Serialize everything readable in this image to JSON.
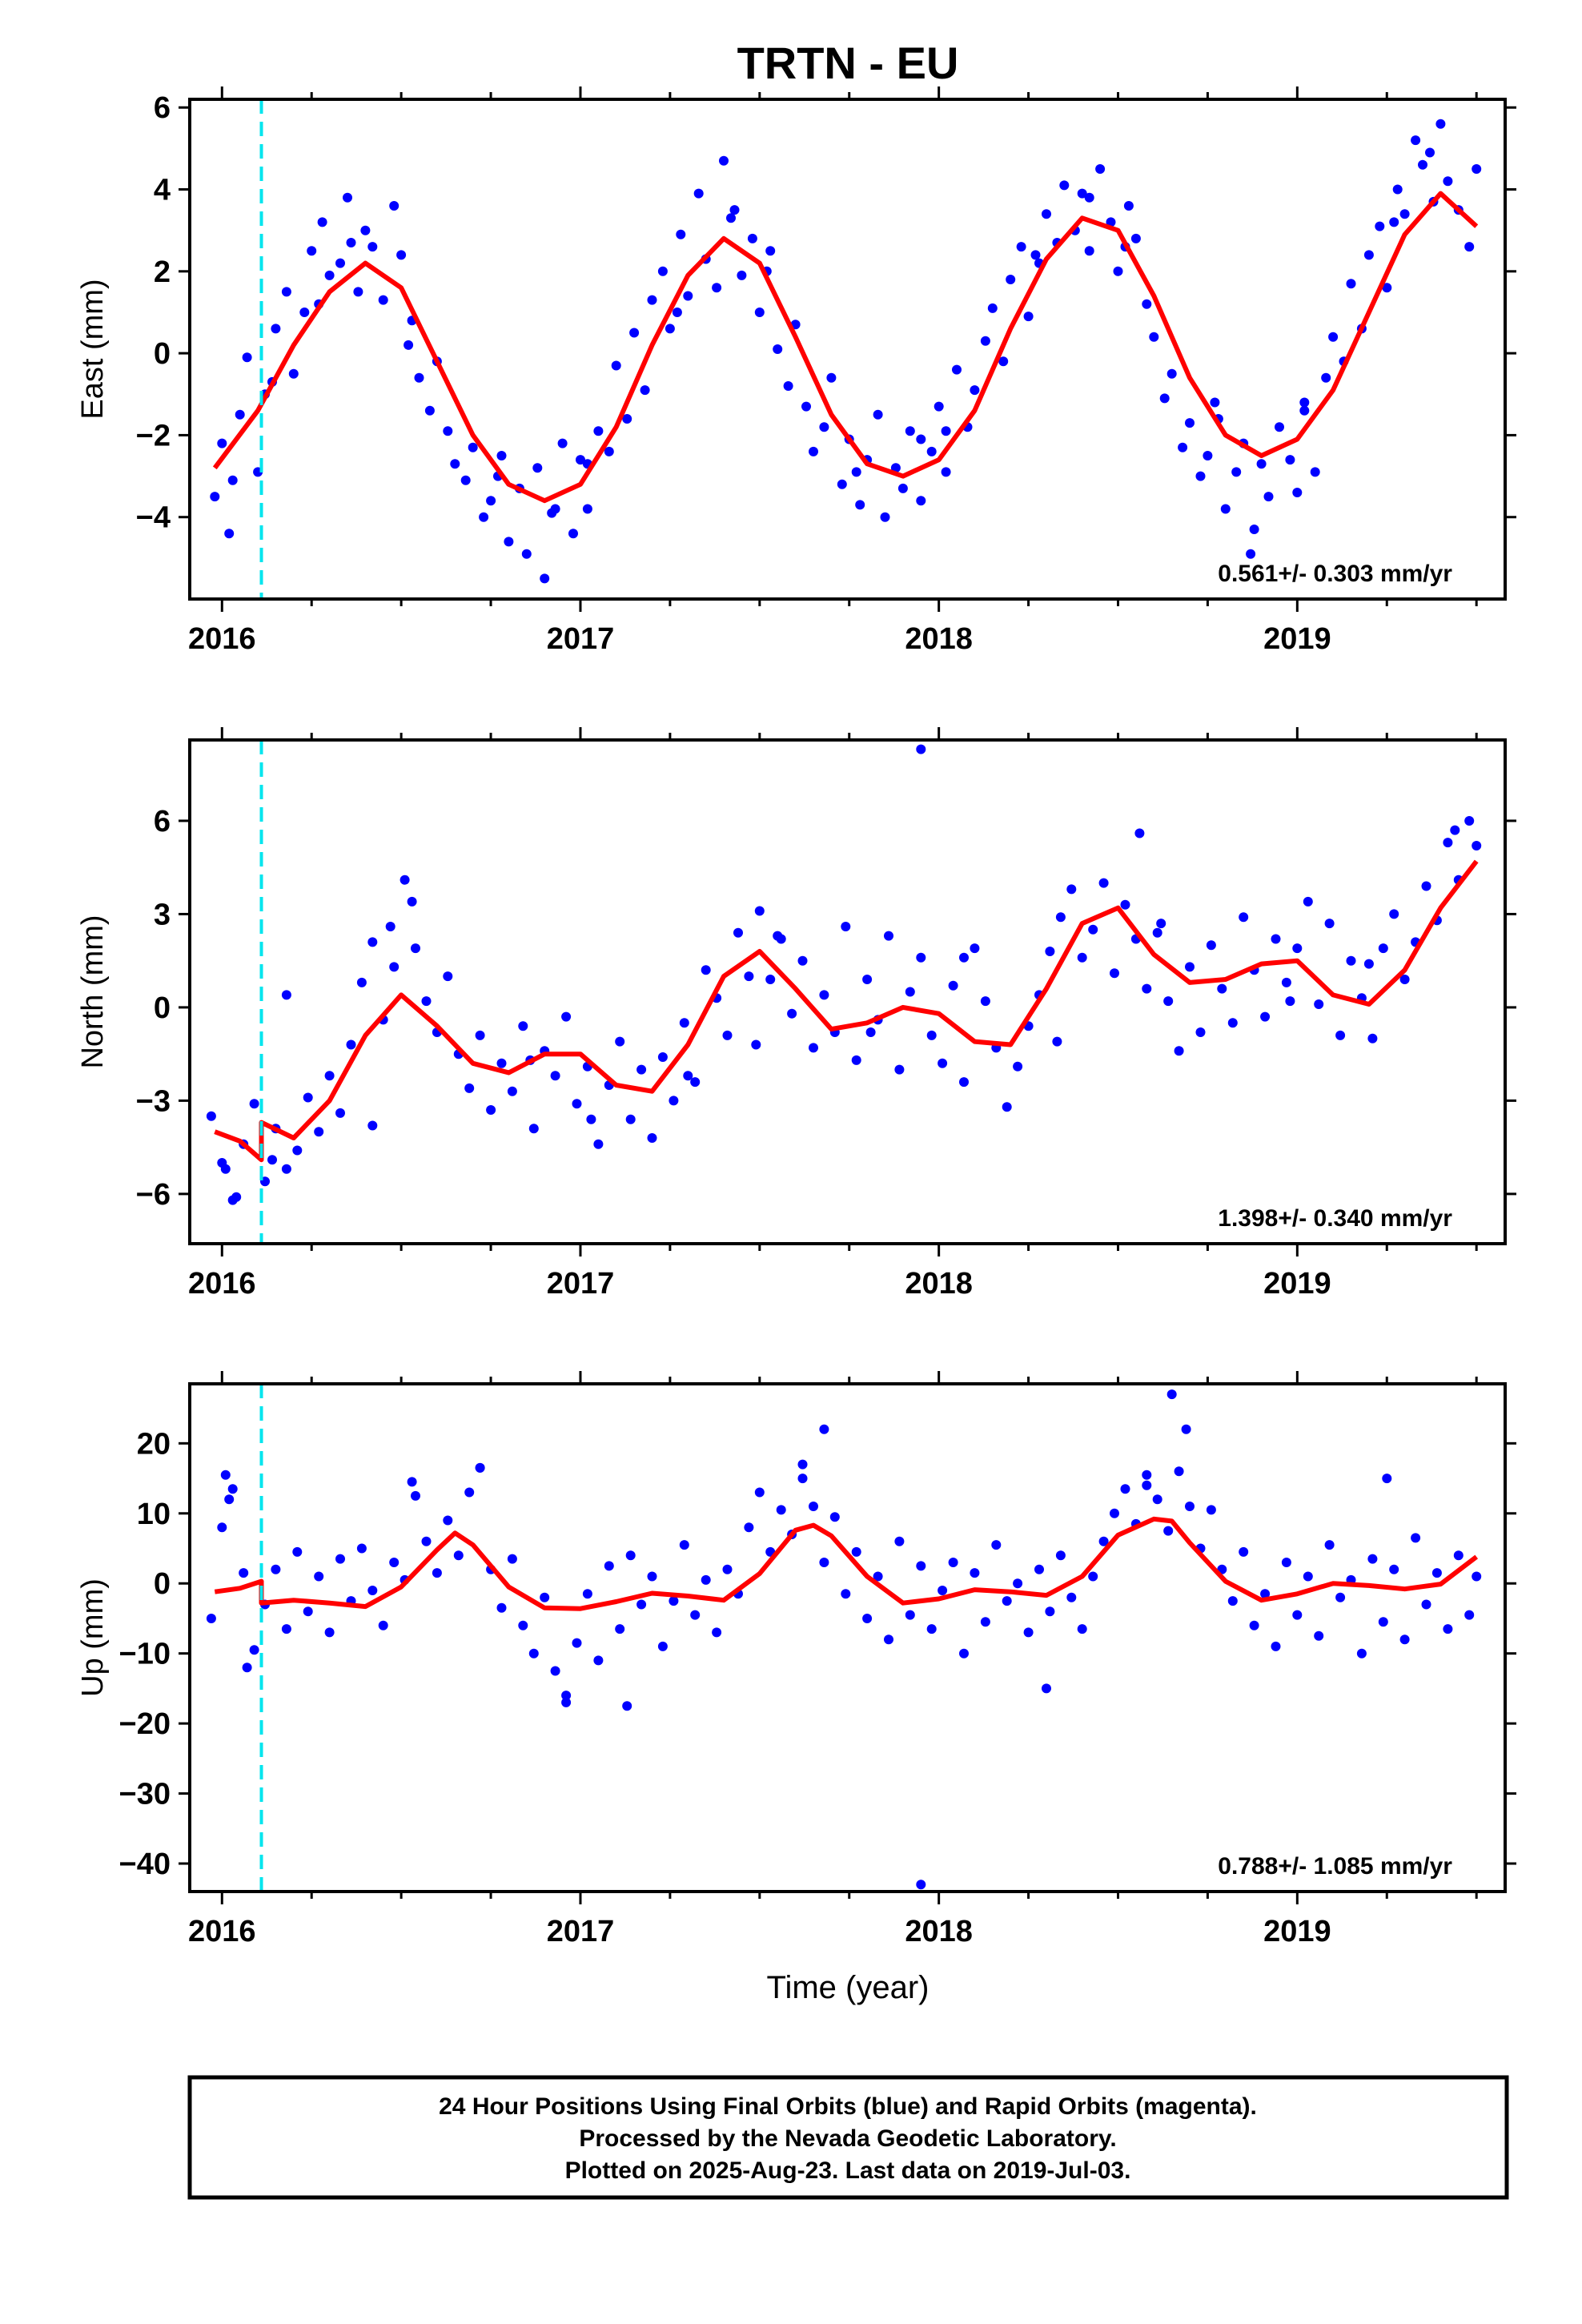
{
  "figure_title": "TRTN - EU",
  "xlabel": "Time (year)",
  "footer": {
    "line1": "24 Hour Positions Using Final Orbits (blue) and Rapid Orbits (magenta).",
    "line2": "Processed by the Nevada Geodetic Laboratory.",
    "line3": "Plotted on 2025-Aug-23. Last data on 2019-Jul-03."
  },
  "colors": {
    "points": "#0000ff",
    "model": "#ff0000",
    "event_line": "#00e5ee",
    "axes": "#000000"
  },
  "chart_data": [
    {
      "type": "scatter",
      "ylabel": "East (mm)",
      "rate_text": "0.561+/- 0.303 mm/yr",
      "xlim": [
        2015.91,
        2019.58
      ],
      "ylim": [
        -6.0,
        6.2
      ],
      "yticks": [
        -4,
        -2,
        0,
        2,
        4,
        6
      ],
      "yticklabels": [
        "−4",
        "−2",
        "0",
        "2",
        "4",
        "6"
      ],
      "xticks": [
        2016,
        2017,
        2018,
        2019
      ],
      "xticklabels": [
        "2016",
        "2017",
        "2018",
        "2019"
      ],
      "grid": false,
      "event_line_x": 2016.11,
      "model_x": [
        2015.98,
        2016.1,
        2016.2,
        2016.3,
        2016.4,
        2016.5,
        2016.6,
        2016.7,
        2016.8,
        2016.9,
        2017.0,
        2017.1,
        2017.2,
        2017.3,
        2017.4,
        2017.5,
        2017.6,
        2017.7,
        2017.8,
        2017.9,
        2018.0,
        2018.1,
        2018.2,
        2018.3,
        2018.4,
        2018.5,
        2018.6,
        2018.7,
        2018.8,
        2018.9,
        2019.0,
        2019.1,
        2019.2,
        2019.3,
        2019.4,
        2019.5
      ],
      "model_y": [
        -2.8,
        -1.4,
        0.2,
        1.5,
        2.2,
        1.6,
        -0.2,
        -2.0,
        -3.2,
        -3.6,
        -3.2,
        -1.8,
        0.2,
        1.9,
        2.8,
        2.2,
        0.4,
        -1.5,
        -2.7,
        -3.0,
        -2.6,
        -1.4,
        0.6,
        2.3,
        3.3,
        3.0,
        1.4,
        -0.6,
        -2.0,
        -2.5,
        -2.1,
        -0.9,
        1.0,
        2.9,
        3.9,
        3.1
      ],
      "points_x": [
        2015.98,
        2016.0,
        2016.02,
        2016.05,
        2016.07,
        2016.1,
        2016.12,
        2016.15,
        2016.18,
        2016.2,
        2016.23,
        2016.25,
        2016.28,
        2016.3,
        2016.33,
        2016.35,
        2016.38,
        2016.4,
        2016.42,
        2016.45,
        2016.48,
        2016.5,
        2016.53,
        2016.55,
        2016.58,
        2016.6,
        2016.63,
        2016.65,
        2016.68,
        2016.7,
        2016.73,
        2016.75,
        2016.78,
        2016.8,
        2016.83,
        2016.85,
        2016.88,
        2016.9,
        2016.92,
        2016.95,
        2016.98,
        2017.0,
        2017.02,
        2017.05,
        2017.08,
        2017.1,
        2017.13,
        2017.15,
        2017.18,
        2017.2,
        2017.23,
        2017.25,
        2017.28,
        2017.3,
        2017.33,
        2017.35,
        2017.38,
        2017.4,
        2017.43,
        2017.45,
        2017.48,
        2017.5,
        2017.53,
        2017.55,
        2017.58,
        2017.6,
        2017.63,
        2017.65,
        2017.68,
        2017.7,
        2017.73,
        2017.75,
        2017.78,
        2017.8,
        2017.83,
        2017.85,
        2017.88,
        2017.9,
        2017.92,
        2017.95,
        2017.98,
        2018.0,
        2018.02,
        2018.05,
        2018.08,
        2018.1,
        2018.13,
        2018.15,
        2018.18,
        2018.2,
        2018.23,
        2018.25,
        2018.28,
        2018.3,
        2018.33,
        2018.35,
        2018.38,
        2018.4,
        2018.42,
        2018.45,
        2018.48,
        2018.5,
        2018.53,
        2018.55,
        2018.58,
        2018.6,
        2018.63,
        2018.65,
        2018.68,
        2018.7,
        2018.73,
        2018.75,
        2018.78,
        2018.8,
        2018.83,
        2018.85,
        2018.88,
        2018.9,
        2018.92,
        2018.95,
        2018.98,
        2019.0,
        2019.02,
        2019.05,
        2019.08,
        2019.1,
        2019.13,
        2019.15,
        2019.18,
        2019.2,
        2019.23,
        2019.25,
        2019.28,
        2019.3,
        2019.33,
        2019.35,
        2019.38,
        2019.4,
        2019.42,
        2019.45,
        2019.48,
        2019.5,
        2016.03,
        2016.27,
        2016.52,
        2016.77,
        2017.02,
        2017.27,
        2017.52,
        2017.77,
        2018.02,
        2018.27,
        2018.52,
        2018.77,
        2019.02,
        2019.27,
        2016.93,
        2017.42,
        2018.42,
        2019.37,
        2016.36,
        2018.87,
        2017.95,
        2016.14
      ],
      "points_y": [
        -3.5,
        -2.2,
        -4.4,
        -1.5,
        -0.1,
        -2.9,
        -1.0,
        0.6,
        1.5,
        -0.5,
        1.0,
        2.5,
        3.2,
        1.9,
        2.2,
        3.8,
        1.5,
        3.0,
        2.6,
        1.3,
        3.6,
        2.4,
        0.8,
        -0.6,
        -1.4,
        -0.2,
        -1.9,
        -2.7,
        -3.1,
        -2.3,
        -4.0,
        -3.6,
        -2.5,
        -4.6,
        -3.3,
        -4.9,
        -2.8,
        -5.5,
        -3.9,
        -2.2,
        -4.4,
        -2.6,
        -3.8,
        -1.9,
        -2.4,
        -0.3,
        -1.6,
        0.5,
        -0.9,
        1.3,
        2.0,
        0.6,
        2.9,
        1.4,
        3.9,
        2.3,
        1.6,
        4.7,
        3.5,
        1.9,
        2.8,
        1.0,
        2.5,
        0.1,
        -0.8,
        0.7,
        -1.3,
        -2.4,
        -1.8,
        -0.6,
        -3.2,
        -2.1,
        -3.7,
        -2.6,
        -1.5,
        -4.0,
        -2.8,
        -3.3,
        -1.9,
        -3.6,
        -2.4,
        -1.3,
        -2.9,
        -0.4,
        -1.8,
        -0.9,
        0.3,
        1.1,
        -0.2,
        1.8,
        2.6,
        0.9,
        2.2,
        3.4,
        2.7,
        4.1,
        3.0,
        3.9,
        2.5,
        4.5,
        3.2,
        2.0,
        3.6,
        2.8,
        1.2,
        0.4,
        -1.1,
        -0.5,
        -2.3,
        -1.7,
        -3.0,
        -2.5,
        -1.6,
        -3.8,
        -2.9,
        -2.2,
        -4.3,
        -2.7,
        -3.5,
        -1.8,
        -2.6,
        -3.4,
        -1.2,
        -2.9,
        -0.6,
        0.4,
        -0.2,
        1.7,
        0.6,
        2.4,
        3.1,
        1.6,
        4.0,
        3.4,
        5.2,
        4.6,
        3.7,
        5.6,
        4.2,
        3.5,
        2.6,
        4.5,
        -3.1,
        1.2,
        0.2,
        -3.0,
        -2.7,
        1.0,
        2.0,
        -2.9,
        -1.9,
        2.4,
        2.6,
        -1.2,
        -1.4,
        3.2,
        -3.8,
        3.3,
        3.8,
        4.9,
        2.7,
        -4.9,
        -2.1,
        -0.7
      ]
    },
    {
      "type": "scatter",
      "ylabel": "North (mm)",
      "rate_text": "1.398+/- 0.340 mm/yr",
      "xlim": [
        2015.91,
        2019.58
      ],
      "ylim": [
        -7.6,
        8.6
      ],
      "yticks": [
        -6,
        -3,
        0,
        3,
        6
      ],
      "yticklabels": [
        "−6",
        "−3",
        "0",
        "3",
        "6"
      ],
      "xticks": [
        2016,
        2017,
        2018,
        2019
      ],
      "xticklabels": [
        "2016",
        "2017",
        "2018",
        "2019"
      ],
      "grid": false,
      "event_line_x": 2016.11,
      "model_x": [
        2015.98,
        2016.05,
        2016.11,
        2016.11,
        2016.2,
        2016.3,
        2016.4,
        2016.5,
        2016.6,
        2016.7,
        2016.8,
        2016.9,
        2017.0,
        2017.1,
        2017.2,
        2017.3,
        2017.4,
        2017.5,
        2017.6,
        2017.7,
        2017.8,
        2017.9,
        2018.0,
        2018.1,
        2018.2,
        2018.3,
        2018.4,
        2018.5,
        2018.6,
        2018.7,
        2018.8,
        2018.9,
        2019.0,
        2019.1,
        2019.2,
        2019.3,
        2019.4,
        2019.5
      ],
      "model_y": [
        -4.0,
        -4.3,
        -4.9,
        -3.7,
        -4.2,
        -3.0,
        -0.9,
        0.4,
        -0.6,
        -1.8,
        -2.1,
        -1.5,
        -1.5,
        -2.5,
        -2.7,
        -1.2,
        1.0,
        1.8,
        0.6,
        -0.7,
        -0.5,
        0.0,
        -0.2,
        -1.1,
        -1.2,
        0.6,
        2.7,
        3.2,
        1.7,
        0.8,
        0.9,
        1.4,
        1.5,
        0.4,
        0.1,
        1.2,
        3.2,
        4.7
      ],
      "points_x": [
        2015.97,
        2016.0,
        2016.03,
        2016.06,
        2016.09,
        2016.12,
        2016.15,
        2016.18,
        2016.21,
        2016.24,
        2016.27,
        2016.3,
        2016.33,
        2016.36,
        2016.39,
        2016.42,
        2016.45,
        2016.48,
        2016.51,
        2016.54,
        2016.57,
        2016.6,
        2016.63,
        2016.66,
        2016.69,
        2016.72,
        2016.75,
        2016.78,
        2016.81,
        2016.84,
        2016.87,
        2016.9,
        2016.93,
        2016.96,
        2016.99,
        2017.02,
        2017.05,
        2017.08,
        2017.11,
        2017.14,
        2017.17,
        2017.2,
        2017.23,
        2017.26,
        2017.29,
        2017.32,
        2017.35,
        2017.38,
        2017.41,
        2017.44,
        2017.47,
        2017.5,
        2017.53,
        2017.56,
        2017.59,
        2017.62,
        2017.65,
        2017.68,
        2017.71,
        2017.74,
        2017.77,
        2017.8,
        2017.83,
        2017.86,
        2017.89,
        2017.92,
        2017.95,
        2017.98,
        2018.01,
        2018.04,
        2018.07,
        2018.1,
        2018.13,
        2018.16,
        2018.19,
        2018.22,
        2018.25,
        2018.28,
        2018.31,
        2018.34,
        2018.37,
        2018.4,
        2018.43,
        2018.46,
        2018.49,
        2018.52,
        2018.55,
        2018.58,
        2018.61,
        2018.64,
        2018.67,
        2018.7,
        2018.73,
        2018.76,
        2018.79,
        2018.82,
        2018.85,
        2018.88,
        2018.91,
        2018.94,
        2018.97,
        2019.0,
        2019.03,
        2019.06,
        2019.09,
        2019.12,
        2019.15,
        2019.18,
        2019.21,
        2019.24,
        2019.27,
        2019.3,
        2019.33,
        2019.36,
        2019.39,
        2019.42,
        2019.45,
        2019.48,
        2019.5,
        2016.01,
        2016.14,
        2016.47,
        2016.53,
        2016.86,
        2017.03,
        2017.3,
        2017.55,
        2017.81,
        2018.07,
        2018.33,
        2018.62,
        2018.98,
        2019.2,
        2019.44,
        2017.95,
        2016.18,
        2016.04,
        2016.42,
        2017.49,
        2018.56
      ],
      "points_y": [
        -3.5,
        -5.0,
        -6.2,
        -4.4,
        -3.1,
        -5.6,
        -3.9,
        -5.2,
        -4.6,
        -2.9,
        -4.0,
        -2.2,
        -3.4,
        -1.2,
        0.8,
        2.1,
        -0.4,
        1.3,
        4.1,
        1.9,
        0.2,
        -0.8,
        1.0,
        -1.5,
        -2.6,
        -0.9,
        -3.3,
        -1.8,
        -2.7,
        -0.6,
        -3.9,
        -1.4,
        -2.2,
        -0.3,
        -3.1,
        -1.9,
        -4.4,
        -2.5,
        -1.1,
        -3.6,
        -2.0,
        -4.2,
        -1.6,
        -3.0,
        -0.5,
        -2.4,
        1.2,
        0.3,
        -0.9,
        2.4,
        1.0,
        3.1,
        0.9,
        2.2,
        -0.2,
        1.5,
        -1.3,
        0.4,
        -0.8,
        2.6,
        -1.7,
        0.9,
        -0.4,
        2.3,
        -2.0,
        0.5,
        1.6,
        -0.9,
        -1.8,
        0.7,
        -2.4,
        1.9,
        0.2,
        -1.3,
        -3.2,
        -1.9,
        -0.6,
        0.4,
        1.8,
        2.9,
        3.8,
        1.6,
        2.5,
        4.0,
        1.1,
        3.3,
        2.2,
        0.6,
        2.4,
        0.2,
        -1.4,
        1.3,
        -0.8,
        2.0,
        0.6,
        -0.5,
        2.9,
        1.2,
        -0.3,
        2.2,
        0.8,
        1.9,
        3.4,
        0.1,
        2.7,
        -0.9,
        1.5,
        0.3,
        -1.0,
        1.9,
        3.0,
        0.9,
        2.1,
        3.9,
        2.8,
        5.3,
        4.1,
        6.0,
        5.2,
        -5.2,
        -4.9,
        2.6,
        3.4,
        -1.7,
        -3.6,
        -2.2,
        2.3,
        -0.8,
        1.6,
        -1.1,
        2.7,
        0.2,
        1.4,
        5.7,
        8.3,
        0.4,
        -6.1,
        -3.8,
        -1.2,
        5.6
      ]
    },
    {
      "type": "scatter",
      "ylabel": "Up (mm)",
      "rate_text": "0.788+/- 1.085 mm/yr",
      "xlim": [
        2015.91,
        2019.58
      ],
      "ylim": [
        -44.0,
        28.5
      ],
      "yticks": [
        -40,
        -30,
        -20,
        -10,
        0,
        10,
        20
      ],
      "yticklabels": [
        "−40",
        "−30",
        "−20",
        "−10",
        "0",
        "10",
        "20"
      ],
      "xticks": [
        2016,
        2017,
        2018,
        2019
      ],
      "xticklabels": [
        "2016",
        "2017",
        "2018",
        "2019"
      ],
      "grid": false,
      "event_line_x": 2016.11,
      "model_x": [
        2015.98,
        2016.05,
        2016.11,
        2016.11,
        2016.2,
        2016.3,
        2016.4,
        2016.5,
        2016.6,
        2016.65,
        2016.7,
        2016.8,
        2016.9,
        2017.0,
        2017.1,
        2017.2,
        2017.3,
        2017.4,
        2017.5,
        2017.6,
        2017.65,
        2017.7,
        2017.8,
        2017.9,
        2018.0,
        2018.1,
        2018.2,
        2018.3,
        2018.4,
        2018.5,
        2018.6,
        2018.65,
        2018.7,
        2018.8,
        2018.9,
        2019.0,
        2019.1,
        2019.2,
        2019.3,
        2019.4,
        2019.5
      ],
      "model_y": [
        -1.2,
        -0.7,
        0.3,
        -2.8,
        -2.4,
        -2.8,
        -3.3,
        -0.5,
        4.8,
        7.2,
        5.5,
        -0.5,
        -3.5,
        -3.6,
        -2.6,
        -1.4,
        -1.8,
        -2.4,
        1.4,
        7.6,
        8.3,
        6.8,
        1.0,
        -2.8,
        -2.2,
        -0.9,
        -1.2,
        -1.7,
        1.0,
        6.9,
        9.2,
        8.9,
        5.8,
        0.3,
        -2.4,
        -1.5,
        0.0,
        -0.3,
        -0.8,
        -0.1,
        3.8
      ],
      "points_x": [
        2015.97,
        2016.0,
        2016.03,
        2016.06,
        2016.09,
        2016.12,
        2016.15,
        2016.18,
        2016.21,
        2016.24,
        2016.27,
        2016.3,
        2016.33,
        2016.36,
        2016.39,
        2016.42,
        2016.45,
        2016.48,
        2016.51,
        2016.54,
        2016.57,
        2016.6,
        2016.63,
        2016.66,
        2016.69,
        2016.72,
        2016.75,
        2016.78,
        2016.81,
        2016.84,
        2016.87,
        2016.9,
        2016.93,
        2016.96,
        2016.99,
        2017.02,
        2017.05,
        2017.08,
        2017.11,
        2017.14,
        2017.17,
        2017.2,
        2017.23,
        2017.26,
        2017.29,
        2017.32,
        2017.35,
        2017.38,
        2017.41,
        2017.44,
        2017.47,
        2017.5,
        2017.53,
        2017.56,
        2017.59,
        2017.62,
        2017.65,
        2017.68,
        2017.71,
        2017.74,
        2017.77,
        2017.8,
        2017.83,
        2017.86,
        2017.89,
        2017.92,
        2017.95,
        2017.98,
        2018.01,
        2018.04,
        2018.07,
        2018.1,
        2018.13,
        2018.16,
        2018.19,
        2018.22,
        2018.25,
        2018.28,
        2018.31,
        2018.34,
        2018.37,
        2018.4,
        2018.43,
        2018.46,
        2018.49,
        2018.52,
        2018.55,
        2018.58,
        2018.61,
        2018.64,
        2018.67,
        2018.7,
        2018.73,
        2018.76,
        2018.79,
        2018.82,
        2018.85,
        2018.88,
        2018.91,
        2018.94,
        2018.97,
        2019.0,
        2019.03,
        2019.06,
        2019.09,
        2019.12,
        2019.15,
        2019.18,
        2019.21,
        2019.24,
        2019.27,
        2019.3,
        2019.33,
        2019.36,
        2019.39,
        2019.42,
        2019.45,
        2019.48,
        2019.5,
        2016.01,
        2016.02,
        2016.53,
        2016.96,
        2017.13,
        2017.68,
        2017.95,
        2018.65,
        2018.69,
        2018.3,
        2019.25,
        2016.07,
        2017.62,
        2018.58,
        2016.72
      ],
      "points_y": [
        -5.0,
        8.0,
        13.5,
        1.5,
        -9.5,
        -3.0,
        2.0,
        -6.5,
        4.5,
        -4.0,
        1.0,
        -7.0,
        3.5,
        -2.5,
        5.0,
        -1.0,
        -6.0,
        3.0,
        0.5,
        12.5,
        6.0,
        1.5,
        9.0,
        4.0,
        13.0,
        16.5,
        2.0,
        -3.5,
        3.5,
        -6.0,
        -10.0,
        -2.0,
        -12.5,
        -16.0,
        -8.5,
        -1.5,
        -11.0,
        2.5,
        -6.5,
        4.0,
        -3.0,
        1.0,
        -9.0,
        -2.5,
        5.5,
        -4.5,
        0.5,
        -7.0,
        2.0,
        -1.5,
        8.0,
        13.0,
        4.5,
        10.5,
        7.0,
        15.0,
        11.0,
        3.0,
        9.5,
        -1.5,
        4.5,
        -5.0,
        1.0,
        -8.0,
        6.0,
        -4.5,
        2.5,
        -6.5,
        -1.0,
        3.0,
        -10.0,
        1.5,
        -5.5,
        5.5,
        -2.5,
        0.0,
        -7.0,
        2.0,
        -4.0,
        4.0,
        -2.0,
        -6.5,
        1.0,
        6.0,
        10.0,
        13.5,
        8.5,
        15.5,
        12.0,
        7.5,
        16.0,
        11.0,
        5.0,
        10.5,
        2.0,
        -2.5,
        4.5,
        -6.0,
        -1.5,
        -9.0,
        3.0,
        -4.5,
        1.0,
        -7.5,
        5.5,
        -2.0,
        0.5,
        -10.0,
        3.5,
        -5.5,
        2.0,
        -8.0,
        6.5,
        -3.0,
        1.5,
        -6.5,
        4.0,
        -4.5,
        1.0,
        15.5,
        12.0,
        14.5,
        -17.0,
        -17.5,
        22.0,
        -43.0,
        27.0,
        22.0,
        -15.0,
        15.0,
        -12.0,
        17.0,
        14.0,
        16.5
      ]
    }
  ]
}
